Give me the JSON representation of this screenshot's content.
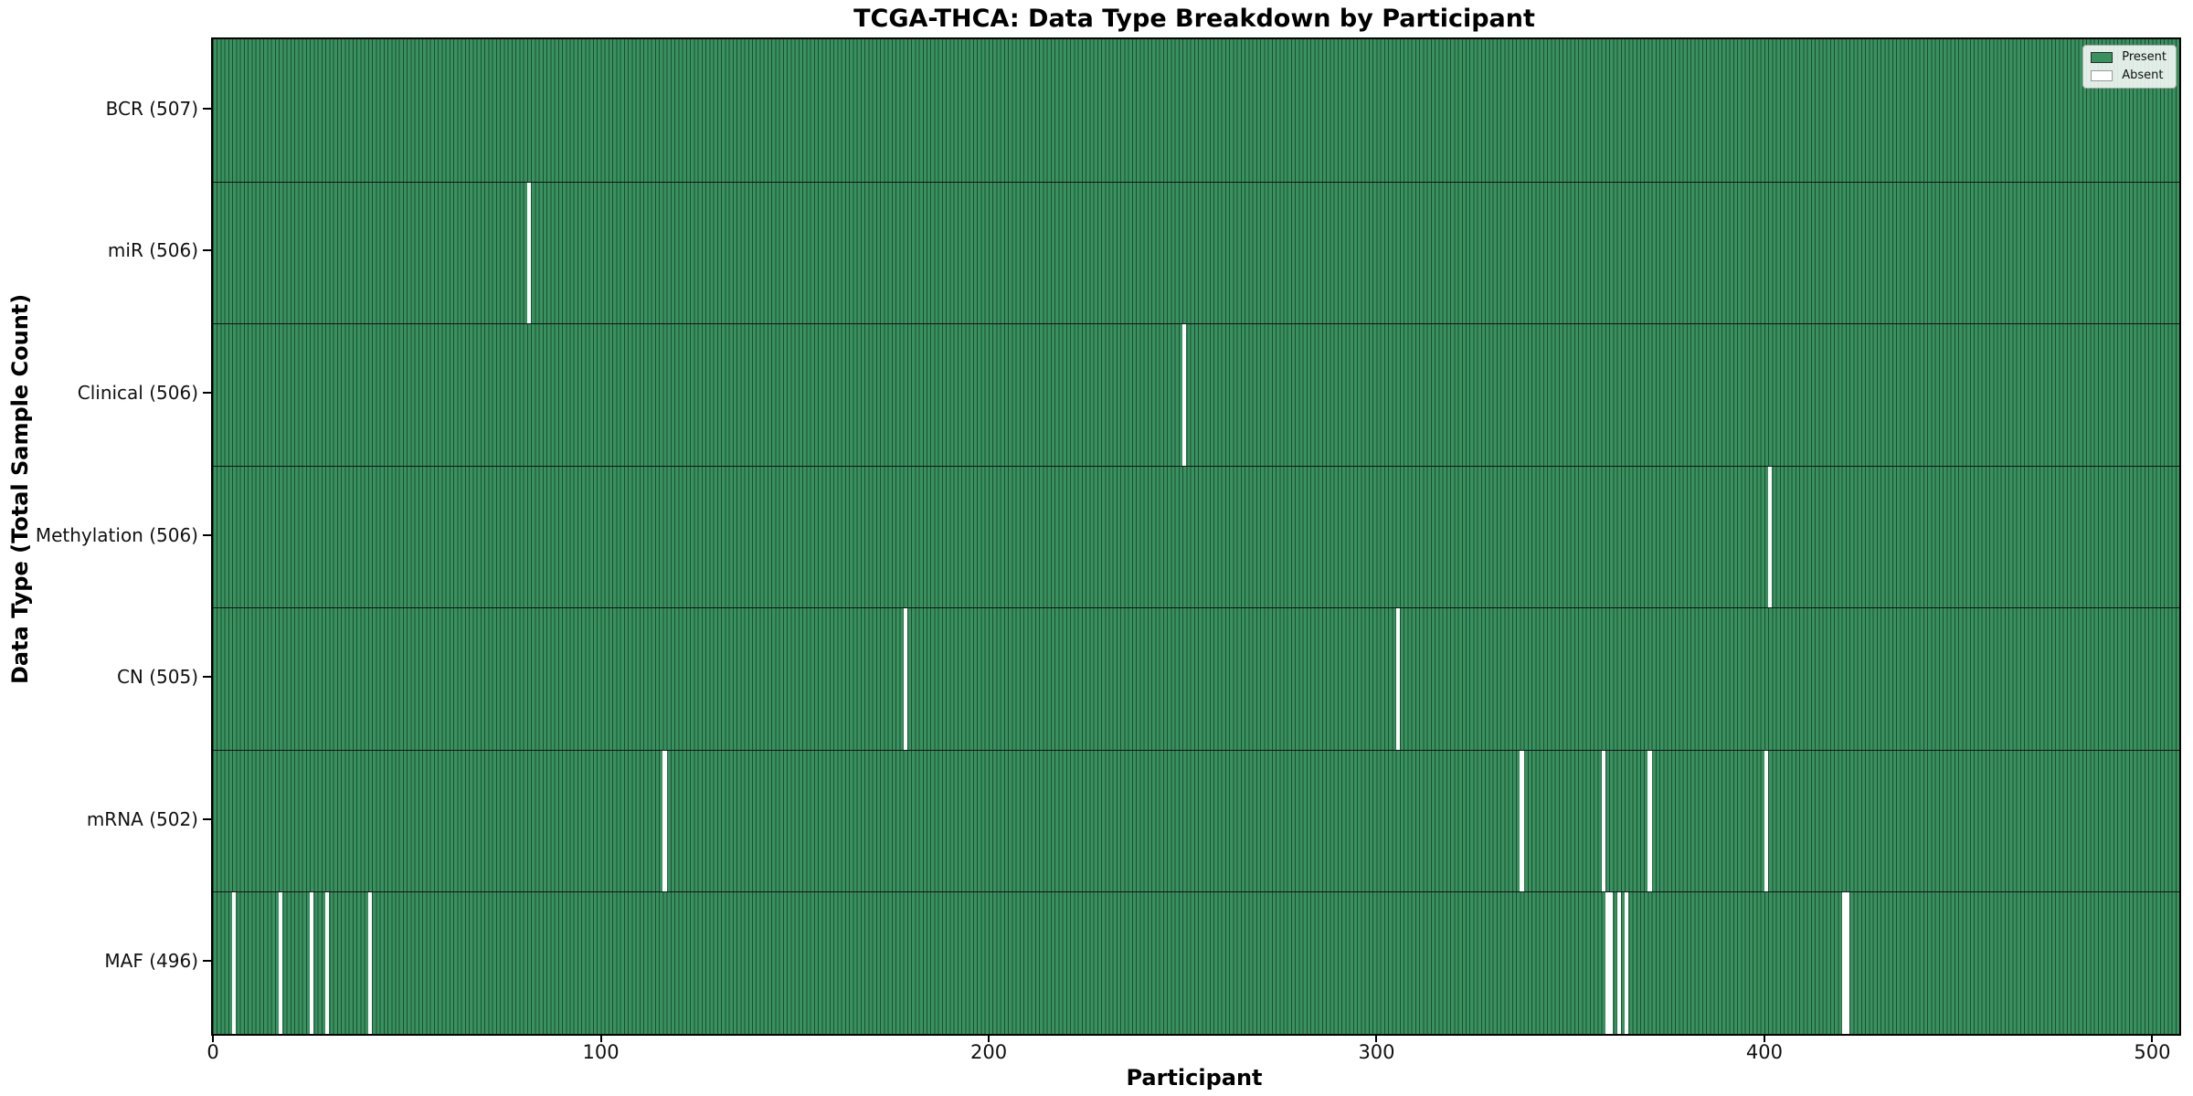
{
  "title": "TCGA-THCA: Data Type Breakdown by Participant",
  "chart_data": {
    "type": "heatmap",
    "title": "TCGA-THCA: Data Type Breakdown by Participant",
    "xlabel": "Participant",
    "ylabel": "Data Type (Total Sample Count)",
    "n_participants": 507,
    "x_ticks": [
      0,
      100,
      200,
      300,
      400,
      500
    ],
    "xlim": [
      -0.5,
      506.5
    ],
    "grid": false,
    "legend_position": "upper-right",
    "legend": [
      {
        "label": "Present",
        "color": "#3a9160"
      },
      {
        "label": "Absent",
        "color": "#ffffff"
      }
    ],
    "rows": [
      {
        "label": "BCR (507)",
        "name": "BCR",
        "total": 507,
        "absent": []
      },
      {
        "label": "miR (506)",
        "name": "miR",
        "total": 506,
        "absent": [
          81
        ]
      },
      {
        "label": "Clinical (506)",
        "name": "Clinical",
        "total": 506,
        "absent": [
          250
        ]
      },
      {
        "label": "Methylation (506)",
        "name": "Methylation",
        "total": 506,
        "absent": [
          401
        ]
      },
      {
        "label": "CN (505)",
        "name": "CN",
        "total": 505,
        "absent": [
          178,
          305
        ]
      },
      {
        "label": "mRNA (502)",
        "name": "mRNA",
        "total": 502,
        "absent": [
          116,
          337,
          358,
          370,
          400
        ]
      },
      {
        "label": "MAF (496)",
        "name": "MAF",
        "total": 496,
        "absent": [
          5,
          17,
          25,
          29,
          40,
          359,
          360,
          362,
          364,
          420,
          421
        ]
      }
    ],
    "colors": {
      "present": "#3a9160",
      "bar_edge": "#1b4e31",
      "absent": "#ffffff",
      "row_divider": "#141414",
      "plot_border": "#000000",
      "tick_text": "#111111"
    }
  }
}
